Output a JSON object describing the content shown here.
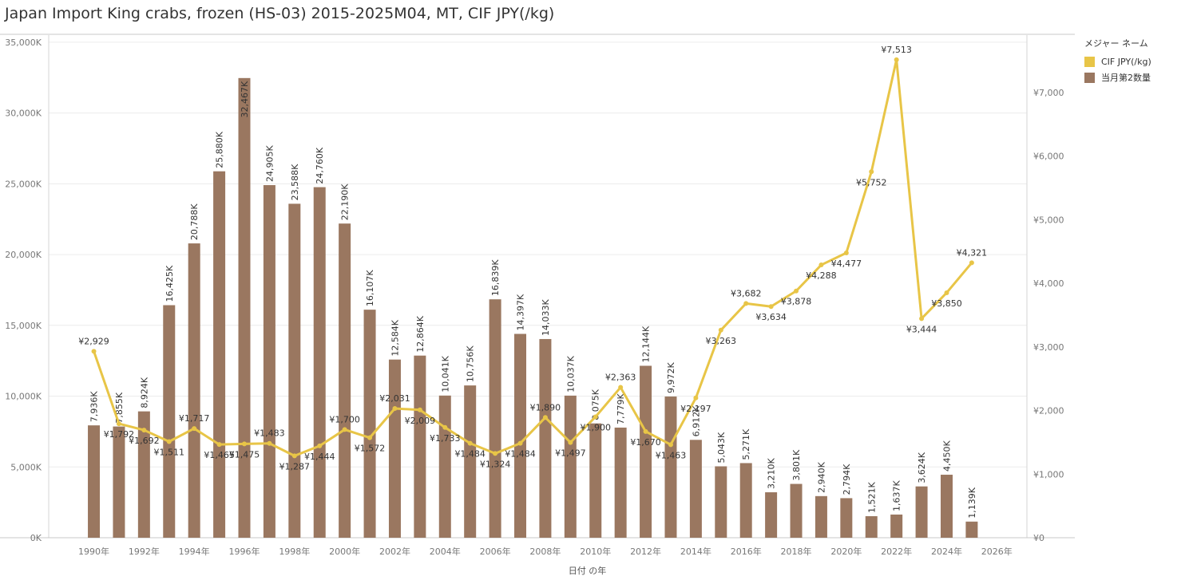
{
  "title": "Japan Import King crabs, frozen (HS-03) 2015-2025M04, MT, CIF JPY(/kg)",
  "legend": {
    "title": "メジャー ネーム",
    "items": [
      {
        "label": "CIF JPY(/kg)",
        "color": "#e8c547"
      },
      {
        "label": "当月第2数量",
        "color": "#9a7760"
      }
    ]
  },
  "chart_data": {
    "type": "bar",
    "xlabel": "日付 の年",
    "x_ticks": [
      "1990年",
      "1992年",
      "1994年",
      "1996年",
      "1998年",
      "2000年",
      "2002年",
      "2004年",
      "2006年",
      "2008年",
      "2010年",
      "2012年",
      "2014年",
      "2016年",
      "2018年",
      "2020年",
      "2022年",
      "2024年",
      "2026年"
    ],
    "x_tick_years": [
      1990,
      1992,
      1994,
      1996,
      1998,
      2000,
      2002,
      2004,
      2006,
      2008,
      2010,
      2012,
      2014,
      2016,
      2018,
      2020,
      2022,
      2024,
      2026
    ],
    "xlim": [
      1988.2,
      2027.2
    ],
    "y_left_ticks": [
      "0K",
      "5,000K",
      "10,000K",
      "15,000K",
      "20,000K",
      "25,000K",
      "30,000K",
      "35,000K"
    ],
    "y_left_tick_values": [
      0,
      5000,
      10000,
      15000,
      20000,
      25000,
      30000,
      35000
    ],
    "ylim_left": [
      0,
      35500
    ],
    "y_right_ticks": [
      "¥0",
      "¥1,000",
      "¥2,000",
      "¥3,000",
      "¥4,000",
      "¥5,000",
      "¥6,000",
      "¥7,000"
    ],
    "y_right_tick_values": [
      0,
      1000,
      2000,
      3000,
      4000,
      5000,
      6000,
      7000
    ],
    "ylim_right": [
      0,
      7900
    ],
    "years": [
      1990,
      1991,
      1992,
      1993,
      1994,
      1995,
      1996,
      1997,
      1998,
      1999,
      2000,
      2001,
      2002,
      2003,
      2004,
      2005,
      2006,
      2007,
      2008,
      2009,
      2010,
      2011,
      2012,
      2013,
      2014,
      2015,
      2016,
      2017,
      2018,
      2019,
      2020,
      2021,
      2022,
      2023,
      2024,
      2025
    ],
    "series": [
      {
        "name": "当月第2数量",
        "kind": "bar",
        "color": "#9a7760",
        "values": [
          7936,
          7855,
          8924,
          16425,
          20788,
          25880,
          32467,
          24905,
          23588,
          24760,
          22190,
          16107,
          12584,
          12864,
          10041,
          10756,
          16839,
          14397,
          14033,
          10037,
          8075,
          7779,
          12144,
          9972,
          6912,
          5043,
          5271,
          3210,
          3801,
          2940,
          2794,
          1521,
          1637,
          3624,
          4450,
          1139
        ],
        "labels": [
          "7,936K",
          "7,855K",
          "8,924K",
          "16,425K",
          "20,788K",
          "25,880K",
          "32,467K",
          "24,905K",
          "23,588K",
          "24,760K",
          "22,190K",
          "16,107K",
          "12,584K",
          "12,864K",
          "10,041K",
          "10,756K",
          "16,839K",
          "14,397K",
          "14,033K",
          "10,037K",
          "8,075K",
          "7,779K",
          "12,144K",
          "9,972K",
          "6,912K",
          "5,043K",
          "5,271K",
          "3,210K",
          "3,801K",
          "2,940K",
          "2,794K",
          "1,521K",
          "1,637K",
          "3,624K",
          "4,450K",
          "1,139K"
        ]
      },
      {
        "name": "CIF JPY(/kg)",
        "kind": "line",
        "color": "#e8c547",
        "values": [
          2929,
          1792,
          1692,
          1511,
          1717,
          1465,
          1475,
          1483,
          1287,
          1444,
          1700,
          1572,
          2031,
          2009,
          1733,
          1484,
          1324,
          1484,
          1890,
          1497,
          1900,
          2363,
          1670,
          1463,
          2197,
          3263,
          3682,
          3634,
          3878,
          4288,
          4477,
          5752,
          7513,
          3444,
          3850,
          4321
        ],
        "labels": [
          "¥2,929",
          "¥1,792",
          "¥1,692",
          "¥1,511",
          "¥1,717",
          "¥1,465",
          "¥1,475",
          "¥1,483",
          "¥1,287",
          "¥1,444",
          "¥1,700",
          "¥1,572",
          "¥2,031",
          "¥2,009",
          "¥1,733",
          "¥1,484",
          "¥1,324",
          "¥1,484",
          "¥1,890",
          "¥1,497",
          "¥1,900",
          "¥2,363",
          "¥1,670",
          "¥1,463",
          "¥2,197",
          "¥3,263",
          "¥3,682",
          "¥3,634",
          "¥3,878",
          "¥4,288",
          "¥4,477",
          "¥5,752",
          "¥7,513",
          "¥3,444",
          "¥3,850",
          "¥4,321"
        ]
      }
    ]
  }
}
